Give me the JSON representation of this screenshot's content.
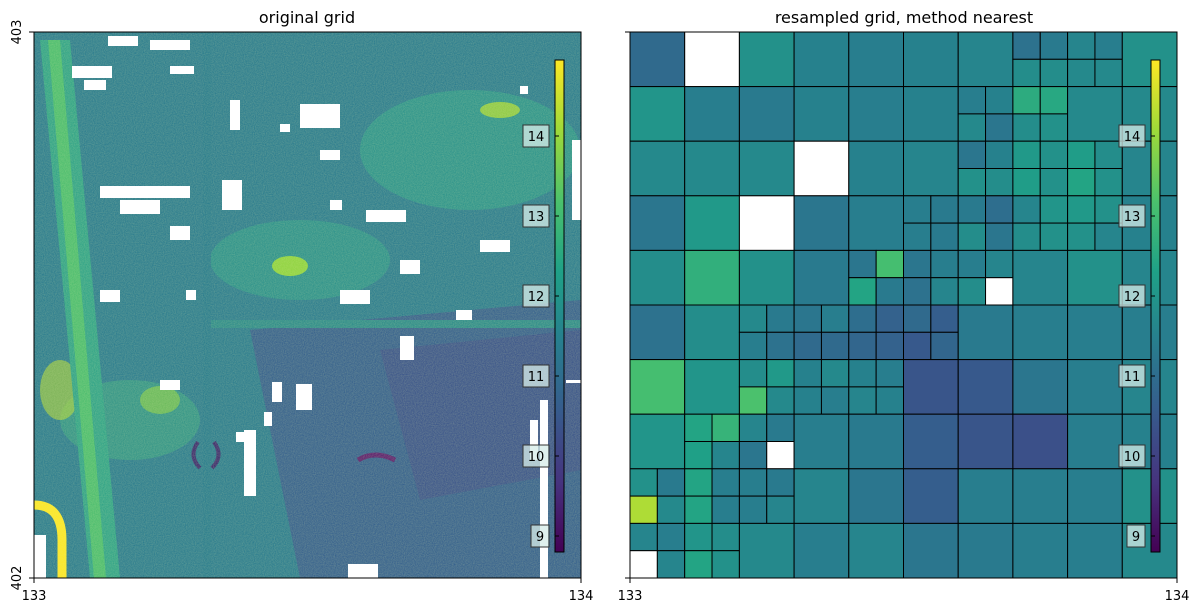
{
  "chart_data": [
    {
      "type": "heatmap",
      "title": "original grid",
      "xlabel": "",
      "ylabel": "",
      "x_ticks": [
        "133",
        "134"
      ],
      "y_ticks": [
        "403",
        "402"
      ],
      "xlim": [
        133,
        134
      ],
      "ylim": [
        402,
        403
      ],
      "colormap": "viridis",
      "colorbar": {
        "ticks": [
          "9",
          "10",
          "11",
          "12",
          "13",
          "14"
        ],
        "range": [
          8.8,
          14.95
        ],
        "placement": "inside-right"
      },
      "nodata_color": "#ffffff"
    },
    {
      "type": "heatmap",
      "title": "resampled grid, method nearest",
      "xlabel": "",
      "ylabel": "",
      "x_ticks": [
        "133",
        "134"
      ],
      "y_ticks": [],
      "xlim": [
        133,
        134
      ],
      "ylim": [
        402,
        403
      ],
      "colormap": "viridis",
      "colorbar": {
        "ticks": [
          "9",
          "10",
          "11",
          "12",
          "13",
          "14"
        ],
        "range": [
          8.8,
          14.95
        ],
        "placement": "inside-right"
      },
      "nodata_color": "#ffffff",
      "note_cells": "quadtree tiles: [col, row, size, value] on a 20x20 grid (row 0 = top, value null = no data)",
      "cells": [
        [
          0,
          0,
          2,
          10.9
        ],
        [
          2,
          0,
          2,
          null
        ],
        [
          4,
          0,
          2,
          11.9
        ],
        [
          6,
          0,
          2,
          11.5
        ],
        [
          8,
          0,
          2,
          11.4
        ],
        [
          10,
          0,
          2,
          11.5
        ],
        [
          12,
          0,
          2,
          11.6
        ],
        [
          14,
          0,
          1,
          11.1
        ],
        [
          15,
          0,
          1,
          11.3
        ],
        [
          16,
          0,
          1,
          11.6
        ],
        [
          17,
          0,
          1,
          11.4
        ],
        [
          14,
          1,
          1,
          11.8
        ],
        [
          15,
          1,
          1,
          11.8
        ],
        [
          16,
          1,
          1,
          11.7
        ],
        [
          17,
          1,
          1,
          11.7
        ],
        [
          18,
          0,
          2,
          11.9
        ],
        [
          0,
          2,
          2,
          12.0
        ],
        [
          2,
          2,
          2,
          11.4
        ],
        [
          4,
          2,
          2,
          11.3
        ],
        [
          6,
          2,
          2,
          11.5
        ],
        [
          8,
          2,
          2,
          11.4
        ],
        [
          10,
          2,
          2,
          11.5
        ],
        [
          12,
          2,
          1,
          11.4
        ],
        [
          13,
          2,
          1,
          11.5
        ],
        [
          12,
          3,
          1,
          11.7
        ],
        [
          13,
          3,
          1,
          11.2
        ],
        [
          14,
          2,
          1,
          12.6
        ],
        [
          15,
          2,
          1,
          12.5
        ],
        [
          14,
          3,
          1,
          11.8
        ],
        [
          15,
          3,
          1,
          11.9
        ],
        [
          16,
          2,
          2,
          11.7
        ],
        [
          18,
          2,
          2,
          11.7
        ],
        [
          0,
          4,
          2,
          11.7
        ],
        [
          2,
          4,
          2,
          11.7
        ],
        [
          4,
          4,
          2,
          11.7
        ],
        [
          6,
          4,
          2,
          null
        ],
        [
          8,
          4,
          2,
          11.5
        ],
        [
          10,
          4,
          2,
          11.6
        ],
        [
          12,
          4,
          1,
          11.2
        ],
        [
          13,
          4,
          1,
          11.5
        ],
        [
          12,
          5,
          1,
          11.9
        ],
        [
          13,
          5,
          1,
          11.8
        ],
        [
          14,
          4,
          1,
          12.1
        ],
        [
          15,
          4,
          1,
          11.9
        ],
        [
          14,
          5,
          1,
          12.2
        ],
        [
          15,
          5,
          1,
          11.9
        ],
        [
          16,
          4,
          1,
          12.2
        ],
        [
          17,
          4,
          1,
          11.8
        ],
        [
          16,
          5,
          1,
          12.4
        ],
        [
          17,
          5,
          1,
          11.9
        ],
        [
          18,
          4,
          2,
          11.6
        ],
        [
          0,
          6,
          2,
          11.2
        ],
        [
          2,
          6,
          2,
          12.1
        ],
        [
          4,
          6,
          2,
          null
        ],
        [
          6,
          6,
          2,
          11.2
        ],
        [
          8,
          6,
          2,
          11.4
        ],
        [
          10,
          6,
          1,
          11.4
        ],
        [
          11,
          6,
          1,
          11.3
        ],
        [
          10,
          7,
          1,
          11.4
        ],
        [
          11,
          7,
          1,
          11.3
        ],
        [
          12,
          6,
          1,
          11.3
        ],
        [
          13,
          6,
          1,
          11.0
        ],
        [
          12,
          7,
          1,
          11.8
        ],
        [
          13,
          7,
          1,
          11.2
        ],
        [
          14,
          6,
          1,
          11.6
        ],
        [
          15,
          6,
          1,
          12.0
        ],
        [
          14,
          7,
          1,
          11.8
        ],
        [
          15,
          7,
          1,
          11.9
        ],
        [
          16,
          6,
          1,
          12.1
        ],
        [
          17,
          6,
          1,
          11.9
        ],
        [
          16,
          7,
          1,
          11.9
        ],
        [
          17,
          7,
          1,
          11.6
        ],
        [
          18,
          6,
          2,
          11.5
        ],
        [
          0,
          8,
          2,
          11.8
        ],
        [
          2,
          8,
          2,
          12.7
        ],
        [
          4,
          8,
          2,
          11.9
        ],
        [
          6,
          8,
          2,
          11.3
        ],
        [
          8,
          8,
          1,
          11.2
        ],
        [
          9,
          8,
          1,
          13.1
        ],
        [
          8,
          9,
          1,
          12.4
        ],
        [
          9,
          9,
          1,
          11.3
        ],
        [
          10,
          8,
          1,
          11.2
        ],
        [
          11,
          8,
          1,
          11.4
        ],
        [
          10,
          9,
          1,
          11.1
        ],
        [
          11,
          9,
          1,
          11.6
        ],
        [
          12,
          8,
          1,
          11.4
        ],
        [
          13,
          8,
          1,
          11.6
        ],
        [
          12,
          9,
          1,
          11.8
        ],
        [
          13,
          9,
          1,
          null
        ],
        [
          14,
          8,
          2,
          11.6
        ],
        [
          16,
          8,
          2,
          11.9
        ],
        [
          18,
          8,
          2,
          11.6
        ],
        [
          0,
          10,
          2,
          11.1
        ],
        [
          2,
          10,
          2,
          11.8
        ],
        [
          4,
          10,
          1,
          11.7
        ],
        [
          5,
          10,
          1,
          11.3
        ],
        [
          4,
          11,
          1,
          11.4
        ],
        [
          5,
          11,
          1,
          11.1
        ],
        [
          6,
          10,
          1,
          11.2
        ],
        [
          7,
          10,
          1,
          11.4
        ],
        [
          6,
          11,
          1,
          10.9
        ],
        [
          7,
          11,
          1,
          10.9
        ],
        [
          8,
          10,
          1,
          11.0
        ],
        [
          9,
          10,
          1,
          10.7
        ],
        [
          8,
          11,
          1,
          10.8
        ],
        [
          9,
          11,
          1,
          10.7
        ],
        [
          10,
          10,
          1,
          10.9
        ],
        [
          11,
          10,
          1,
          10.6
        ],
        [
          10,
          11,
          1,
          10.5
        ],
        [
          11,
          11,
          1,
          10.8
        ],
        [
          12,
          10,
          2,
          11.3
        ],
        [
          14,
          10,
          2,
          11.4
        ],
        [
          16,
          10,
          2,
          11.4
        ],
        [
          18,
          10,
          2,
          11.4
        ],
        [
          0,
          12,
          2,
          13.1
        ],
        [
          2,
          12,
          2,
          12.0
        ],
        [
          4,
          12,
          1,
          11.8
        ],
        [
          5,
          12,
          1,
          12.1
        ],
        [
          4,
          13,
          1,
          13.2
        ],
        [
          5,
          13,
          1,
          11.7
        ],
        [
          6,
          12,
          1,
          11.5
        ],
        [
          7,
          12,
          1,
          11.7
        ],
        [
          6,
          13,
          1,
          11.5
        ],
        [
          7,
          13,
          1,
          11.4
        ],
        [
          8,
          12,
          1,
          11.5
        ],
        [
          9,
          12,
          1,
          11.4
        ],
        [
          8,
          13,
          1,
          11.6
        ],
        [
          9,
          13,
          1,
          11.5
        ],
        [
          10,
          12,
          2,
          10.4
        ],
        [
          12,
          12,
          2,
          10.5
        ],
        [
          14,
          12,
          2,
          11.2
        ],
        [
          16,
          12,
          2,
          11.4
        ],
        [
          18,
          12,
          2,
          11.6
        ],
        [
          0,
          14,
          2,
          12.0
        ],
        [
          2,
          14,
          1,
          12.4
        ],
        [
          3,
          14,
          1,
          12.8
        ],
        [
          2,
          15,
          1,
          12.3
        ],
        [
          3,
          15,
          1,
          11.6
        ],
        [
          4,
          14,
          1,
          11.6
        ],
        [
          5,
          14,
          1,
          11.3
        ],
        [
          4,
          15,
          1,
          11.2
        ],
        [
          5,
          15,
          1,
          null
        ],
        [
          6,
          14,
          2,
          11.4
        ],
        [
          8,
          14,
          2,
          11.3
        ],
        [
          10,
          14,
          2,
          10.6
        ],
        [
          12,
          14,
          2,
          10.4
        ],
        [
          14,
          14,
          2,
          10.3
        ],
        [
          16,
          14,
          2,
          11.4
        ],
        [
          18,
          14,
          2,
          11.5
        ],
        [
          0,
          16,
          1,
          11.9
        ],
        [
          1,
          16,
          1,
          11.3
        ],
        [
          2,
          16,
          1,
          12.4
        ],
        [
          3,
          16,
          1,
          11.4
        ],
        [
          2,
          17,
          1,
          12.4
        ],
        [
          3,
          17,
          1,
          11.4
        ],
        [
          4,
          16,
          1,
          11.4
        ],
        [
          5,
          16,
          1,
          11.3
        ],
        [
          4,
          17,
          1,
          11.4
        ],
        [
          5,
          17,
          1,
          11.6
        ],
        [
          0,
          17,
          1,
          14.2
        ],
        [
          1,
          17,
          1,
          11.7
        ],
        [
          6,
          16,
          2,
          11.6
        ],
        [
          8,
          16,
          2,
          11.2
        ],
        [
          10,
          16,
          2,
          10.6
        ],
        [
          12,
          16,
          2,
          11.4
        ],
        [
          14,
          16,
          2,
          11.4
        ],
        [
          16,
          16,
          2,
          11.4
        ],
        [
          18,
          16,
          2,
          11.9
        ],
        [
          0,
          18,
          1,
          11.6
        ],
        [
          1,
          18,
          1,
          11.4
        ],
        [
          2,
          18,
          1,
          12.0
        ],
        [
          3,
          18,
          1,
          11.8
        ],
        [
          0,
          19,
          1,
          null
        ],
        [
          1,
          19,
          1,
          11.6
        ],
        [
          2,
          19,
          1,
          12.4
        ],
        [
          3,
          19,
          1,
          11.9
        ],
        [
          4,
          18,
          2,
          11.7
        ],
        [
          6,
          18,
          2,
          11.4
        ],
        [
          8,
          18,
          2,
          11.6
        ],
        [
          10,
          18,
          2,
          11.2
        ],
        [
          12,
          18,
          2,
          11.3
        ],
        [
          14,
          18,
          2,
          11.4
        ],
        [
          16,
          18,
          2,
          11.4
        ],
        [
          18,
          18,
          2,
          11.7
        ]
      ]
    }
  ]
}
